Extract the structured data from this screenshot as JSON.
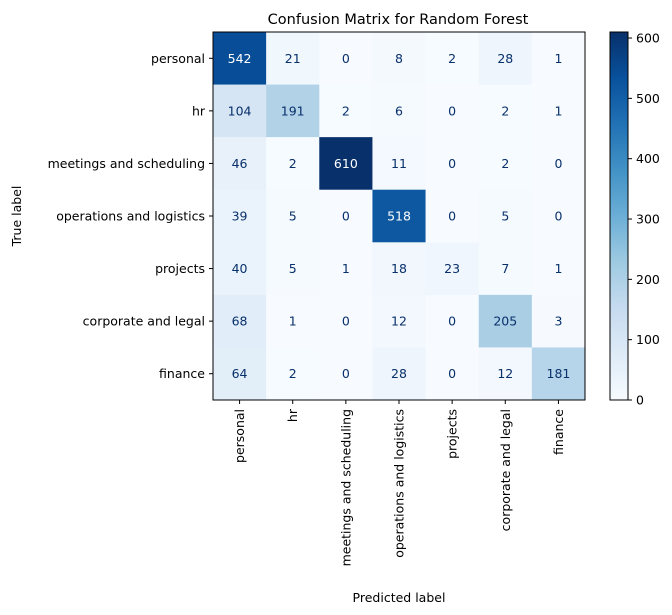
{
  "chart_data": {
    "type": "heatmap",
    "title": "Confusion Matrix for Random Forest",
    "xlabel": "Predicted label",
    "ylabel": "True label",
    "categories": [
      "personal",
      "hr",
      "meetings and scheduling",
      "operations and logistics",
      "projects",
      "corporate and legal",
      "finance"
    ],
    "matrix": [
      [
        542,
        21,
        0,
        8,
        2,
        28,
        1
      ],
      [
        104,
        191,
        2,
        6,
        0,
        2,
        1
      ],
      [
        46,
        2,
        610,
        11,
        0,
        2,
        0
      ],
      [
        39,
        5,
        0,
        518,
        0,
        5,
        0
      ],
      [
        40,
        5,
        1,
        18,
        23,
        7,
        1
      ],
      [
        68,
        1,
        0,
        12,
        0,
        205,
        3
      ],
      [
        64,
        2,
        0,
        28,
        0,
        12,
        181
      ]
    ],
    "colormap": "Blues",
    "vmin": 0,
    "vmax": 610,
    "colorbar_ticks": [
      0,
      100,
      200,
      300,
      400,
      500,
      600
    ],
    "text_color_light": "#ffffff",
    "text_color_dark": "#08306b"
  }
}
